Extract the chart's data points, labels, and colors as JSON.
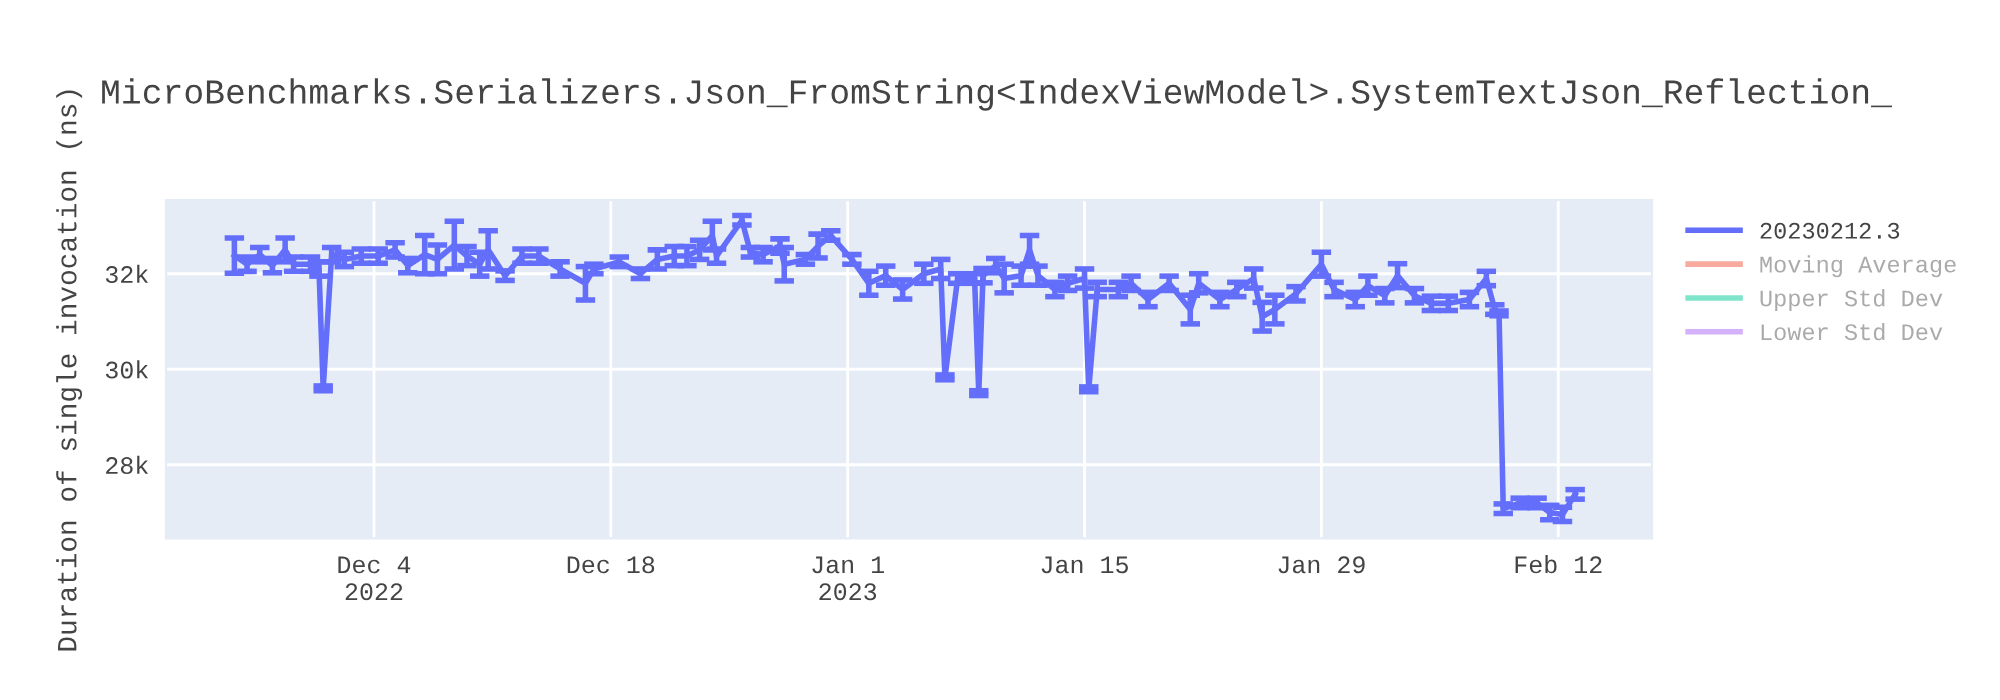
{
  "chart_data": {
    "type": "line",
    "title": "MicroBenchmarks.Serializers.Json_FromString<IndexViewModel>.SystemTextJson_Reflection_",
    "ylabel": "Duration of single invocation (ns)",
    "x": [
      "2022-11-25T18:00",
      "2022-11-26T12:00",
      "2022-11-27T06:00",
      "2022-11-28T00:00",
      "2022-11-28T18:00",
      "2022-11-29T06:00",
      "2022-11-30T06:00",
      "2022-11-30T18:00",
      "2022-12-01T00:00",
      "2022-12-01T12:00",
      "2022-12-02T06:00",
      "2022-12-03T06:00",
      "2022-12-04T06:00",
      "2022-12-05T06:00",
      "2022-12-06T00:00",
      "2022-12-07T00:00",
      "2022-12-07T18:00",
      "2022-12-08T18:00",
      "2022-12-09T12:00",
      "2022-12-10T06:00",
      "2022-12-10T18:00",
      "2022-12-11T18:00",
      "2022-12-12T18:00",
      "2022-12-13T18:00",
      "2022-12-15T00:00",
      "2022-12-16T12:00",
      "2022-12-17T00:00",
      "2022-12-18T12:00",
      "2022-12-19T18:00",
      "2022-12-20T18:00",
      "2022-12-21T18:00",
      "2022-12-22T12:00",
      "2022-12-23T06:00",
      "2022-12-24T00:00",
      "2022-12-24T06:00",
      "2022-12-25T18:00",
      "2022-12-26T06:00",
      "2022-12-27T00:00",
      "2022-12-28T00:00",
      "2022-12-28T06:00",
      "2022-12-29T12:00",
      "2022-12-30T06:00",
      "2022-12-31T00:00",
      "2023-01-01T06:00",
      "2023-01-02T06:00",
      "2023-01-03T06:00",
      "2023-01-04T06:00",
      "2023-01-05T12:00",
      "2023-01-06T12:00",
      "2023-01-06T18:00",
      "2023-01-07T12:00",
      "2023-01-08T12:00",
      "2023-01-08T18:00",
      "2023-01-09T00:00",
      "2023-01-09T18:00",
      "2023-01-10T06:00",
      "2023-01-11T06:00",
      "2023-01-11T18:00",
      "2023-01-12T06:00",
      "2023-01-13T06:00",
      "2023-01-14T00:00",
      "2023-01-15T00:00",
      "2023-01-15T06:00",
      "2023-01-15T18:00",
      "2023-01-17T00:00",
      "2023-01-17T18:00",
      "2023-01-18T18:00",
      "2023-01-20T00:00",
      "2023-01-21T06:00",
      "2023-01-21T18:00",
      "2023-01-23T00:00",
      "2023-01-24T00:00",
      "2023-01-25T00:00",
      "2023-01-25T12:00",
      "2023-01-26T06:00",
      "2023-01-27T12:00",
      "2023-01-29T00:00",
      "2023-01-29T18:00",
      "2023-01-31T00:00",
      "2023-01-31T18:00",
      "2023-02-01T18:00",
      "2023-02-02T12:00",
      "2023-02-03T12:00",
      "2023-02-04T12:00",
      "2023-02-05T12:00",
      "2023-02-06T18:00",
      "2023-02-07T18:00",
      "2023-02-08T06:00",
      "2023-02-08T12:00",
      "2023-02-08T18:00",
      "2023-02-09T18:00",
      "2023-02-10T18:00",
      "2023-02-11T12:00",
      "2023-02-12T06:00",
      "2023-02-13T00:00"
    ],
    "series": [
      {
        "name": "20230212.3",
        "color": "#636efa",
        "values": [
          32380,
          32200,
          32400,
          32170,
          32500,
          32200,
          32200,
          32100,
          29600,
          32400,
          32300,
          32370,
          32370,
          32500,
          32170,
          32400,
          32300,
          32600,
          32370,
          32200,
          32500,
          31960,
          32370,
          32370,
          32100,
          31800,
          32100,
          32250,
          32000,
          32300,
          32370,
          32370,
          32500,
          32800,
          32370,
          33120,
          32450,
          32400,
          32580,
          32200,
          32300,
          32580,
          32800,
          32300,
          31800,
          31960,
          31670,
          32000,
          32100,
          29830,
          31900,
          31900,
          29500,
          31960,
          32170,
          31900,
          31960,
          32500,
          31960,
          31670,
          31800,
          31900,
          29580,
          31670,
          31670,
          31800,
          31460,
          31800,
          31250,
          31800,
          31460,
          31670,
          31900,
          31100,
          31250,
          31580,
          32200,
          31670,
          31460,
          31750,
          31540,
          31960,
          31540,
          31380,
          31380,
          31460,
          31900,
          31250,
          31170,
          27080,
          27200,
          27200,
          27000,
          26960,
          27380
        ],
        "errors": [
          370,
          150,
          150,
          150,
          250,
          150,
          150,
          150,
          50,
          150,
          150,
          150,
          150,
          150,
          150,
          400,
          300,
          500,
          200,
          250,
          400,
          100,
          150,
          150,
          150,
          350,
          100,
          100,
          100,
          200,
          200,
          200,
          200,
          300,
          150,
          100,
          100,
          150,
          150,
          350,
          100,
          250,
          100,
          100,
          250,
          200,
          200,
          200,
          200,
          50,
          100,
          100,
          50,
          150,
          150,
          300,
          200,
          300,
          200,
          150,
          150,
          200,
          50,
          150,
          150,
          150,
          150,
          150,
          300,
          200,
          150,
          150,
          200,
          300,
          300,
          150,
          250,
          150,
          150,
          200,
          150,
          250,
          150,
          150,
          150,
          150,
          150,
          100,
          50,
          100,
          100,
          100,
          150,
          150,
          100
        ]
      },
      {
        "name": "Moving Average",
        "color": "#f7aa9d",
        "values": [
          null,
          null,
          null,
          null,
          null,
          null,
          null,
          null,
          null,
          null,
          null,
          null,
          null,
          null,
          null,
          null,
          null,
          null,
          null,
          null,
          null,
          null,
          null,
          null,
          null,
          null,
          null,
          null,
          null,
          null,
          null,
          null,
          null,
          null,
          null,
          null,
          null,
          null,
          null,
          null,
          null,
          null,
          null,
          null,
          null,
          null,
          null,
          null,
          null,
          null,
          null,
          null,
          null,
          null,
          null,
          null,
          null,
          null,
          null,
          null,
          null,
          null,
          null,
          null,
          null,
          null,
          null,
          null,
          null,
          null,
          null,
          null,
          null,
          null,
          null,
          null,
          null,
          null,
          null,
          null,
          null,
          null,
          null,
          null,
          null,
          null,
          null,
          null,
          null,
          null,
          null,
          null,
          null,
          null,
          null
        ]
      },
      {
        "name": "Upper Std Dev",
        "color": "#7fe5ca",
        "values": [
          null,
          null,
          null,
          null,
          null,
          null,
          null,
          null,
          null,
          null,
          null,
          null,
          null,
          null,
          null,
          null,
          null,
          null,
          null,
          null,
          null,
          null,
          null,
          null,
          null,
          null,
          null,
          null,
          null,
          null,
          null,
          null,
          null,
          null,
          null,
          null,
          null,
          null,
          null,
          null,
          null,
          null,
          null,
          null,
          null,
          null,
          null,
          null,
          null,
          null,
          null,
          null,
          null,
          null,
          null,
          null,
          null,
          null,
          null,
          null,
          null,
          null,
          null,
          null,
          null,
          null,
          null,
          null,
          null,
          null,
          null,
          null,
          null,
          null,
          null,
          null,
          null,
          null,
          null,
          null,
          null,
          null,
          null,
          null,
          null,
          null,
          null,
          null,
          null,
          null,
          null,
          null,
          null,
          null,
          null
        ]
      },
      {
        "name": "Lower Std Dev",
        "color": "#d5b1fc",
        "values": [
          null,
          null,
          null,
          null,
          null,
          null,
          null,
          null,
          null,
          null,
          null,
          null,
          null,
          null,
          null,
          null,
          null,
          null,
          null,
          null,
          null,
          null,
          null,
          null,
          null,
          null,
          null,
          null,
          null,
          null,
          null,
          null,
          null,
          null,
          null,
          null,
          null,
          null,
          null,
          null,
          null,
          null,
          null,
          null,
          null,
          null,
          null,
          null,
          null,
          null,
          null,
          null,
          null,
          null,
          null,
          null,
          null,
          null,
          null,
          null,
          null,
          null,
          null,
          null,
          null,
          null,
          null,
          null,
          null,
          null,
          null,
          null,
          null,
          null,
          null,
          null,
          null,
          null,
          null,
          null,
          null,
          null,
          null,
          null,
          null,
          null,
          null,
          null,
          null,
          null,
          null,
          null,
          null,
          null,
          null
        ]
      }
    ],
    "xlim": [
      "2022-11-21T17:00",
      "2023-02-17T13:00"
    ],
    "xticks": [
      {
        "value": "2022-12-04",
        "label": "Dec 4\n2022"
      },
      {
        "value": "2022-12-18",
        "label": "Dec 18"
      },
      {
        "value": "2023-01-01",
        "label": "Jan 1\n2023"
      },
      {
        "value": "2023-01-15",
        "label": "Jan 15"
      },
      {
        "value": "2023-01-29",
        "label": "Jan 29"
      },
      {
        "value": "2023-02-12",
        "label": "Feb 12"
      }
    ],
    "ylim": [
      26460,
      33540
    ],
    "yticks": [
      {
        "value": 28000,
        "label": "28k"
      },
      {
        "value": 30000,
        "label": "30k"
      },
      {
        "value": 32000,
        "label": "32k"
      }
    ],
    "grid": true,
    "legend": "right",
    "marker": "none",
    "line_style": "solid"
  }
}
